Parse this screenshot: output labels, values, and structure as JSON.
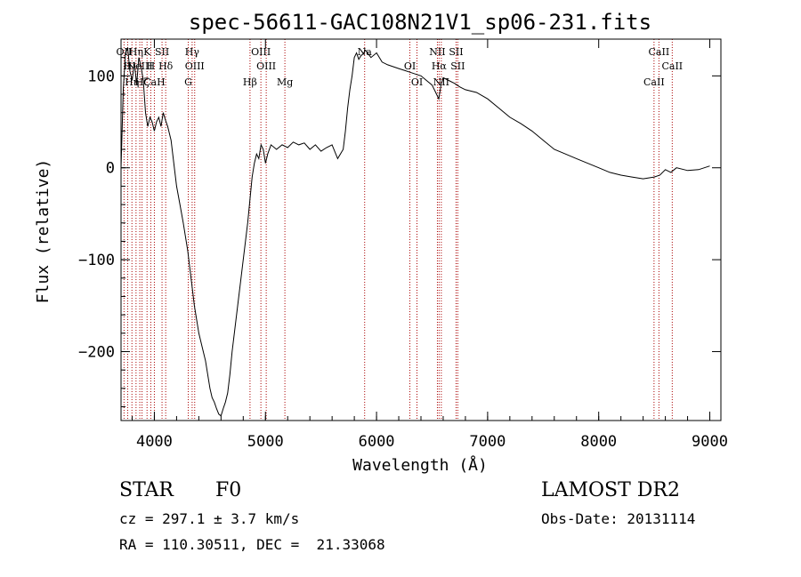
{
  "chart_data": {
    "type": "line",
    "title": "spec-56611-GAC108N21V1_sp06-231.fits",
    "xlabel": "Wavelength (Å)",
    "ylabel": "Flux (relative)",
    "xlim": [
      3700,
      9100
    ],
    "ylim": [
      -275,
      140
    ],
    "xticks": [
      4000,
      5000,
      6000,
      7000,
      8000,
      9000
    ],
    "yticks": [
      100,
      0,
      -100,
      -200
    ],
    "ytick_labels": [
      "100",
      "0",
      "−100",
      "−200"
    ],
    "grid": false,
    "series": [
      {
        "x": [
          3700,
          3720,
          3740,
          3760,
          3780,
          3800,
          3820,
          3840,
          3860,
          3880,
          3900,
          3920,
          3940,
          3960,
          3980,
          4000,
          4020,
          4040,
          4060,
          4080,
          4100,
          4120,
          4150,
          4180,
          4200,
          4230,
          4260,
          4300,
          4320,
          4340,
          4360,
          4380,
          4400,
          4420,
          4440,
          4460,
          4480,
          4500,
          4520,
          4540,
          4560,
          4580,
          4600,
          4620,
          4640,
          4660,
          4680,
          4700,
          4720,
          4740,
          4760,
          4780,
          4800,
          4820,
          4840,
          4860,
          4880,
          4900,
          4920,
          4940,
          4960,
          4980,
          5000,
          5020,
          5050,
          5100,
          5150,
          5200,
          5250,
          5300,
          5350,
          5400,
          5450,
          5500,
          5550,
          5600,
          5650,
          5700,
          5720,
          5740,
          5760,
          5780,
          5800,
          5820,
          5840,
          5860,
          5880,
          5900,
          5950,
          6000,
          6050,
          6100,
          6150,
          6200,
          6250,
          6300,
          6350,
          6400,
          6450,
          6500,
          6540,
          6560,
          6580,
          6600,
          6650,
          6700,
          6750,
          6800,
          6900,
          7000,
          7100,
          7200,
          7300,
          7400,
          7500,
          7600,
          7700,
          7800,
          7900,
          8000,
          8100,
          8200,
          8300,
          8400,
          8500,
          8550,
          8600,
          8650,
          8700,
          8800,
          8900,
          9000
        ],
        "y": [
          0,
          85,
          125,
          130,
          105,
          95,
          115,
          90,
          120,
          110,
          95,
          60,
          45,
          55,
          50,
          40,
          50,
          55,
          45,
          60,
          52,
          45,
          30,
          0,
          -20,
          -40,
          -60,
          -90,
          -110,
          -130,
          -150,
          -165,
          -180,
          -190,
          -200,
          -210,
          -225,
          -240,
          -250,
          -255,
          -262,
          -268,
          -270,
          -262,
          -255,
          -245,
          -225,
          -200,
          -180,
          -160,
          -140,
          -120,
          -100,
          -80,
          -60,
          -35,
          -10,
          5,
          15,
          10,
          25,
          20,
          5,
          15,
          25,
          20,
          25,
          22,
          28,
          25,
          27,
          20,
          25,
          18,
          22,
          25,
          10,
          20,
          40,
          65,
          85,
          100,
          120,
          125,
          118,
          122,
          124,
          128,
          120,
          125,
          115,
          112,
          110,
          108,
          106,
          104,
          102,
          100,
          95,
          90,
          80,
          75,
          90,
          98,
          95,
          92,
          88,
          85,
          82,
          75,
          65,
          55,
          48,
          40,
          30,
          20,
          15,
          10,
          5,
          0,
          -5,
          -8,
          -10,
          -12,
          -10,
          -8,
          -2,
          -5,
          0,
          -3,
          -2,
          2
        ]
      }
    ],
    "line_markers": [
      {
        "x": 3727,
        "label": "OII"
      },
      {
        "x": 3760,
        "label": "H"
      },
      {
        "x": 3798,
        "label": "Hη"
      },
      {
        "x": 3835,
        "label": "Hη"
      },
      {
        "x": 3869,
        "label": "NeIII"
      },
      {
        "x": 3889,
        "label": "Hζ"
      },
      {
        "x": 3934,
        "label": "K"
      },
      {
        "x": 3968,
        "label": "H"
      },
      {
        "x": 4000,
        "label": "CaH"
      },
      {
        "x": 4069,
        "label": "SII"
      },
      {
        "x": 4102,
        "label": "Hδ"
      },
      {
        "x": 4305,
        "label": "G"
      },
      {
        "x": 4340,
        "label": "Hγ"
      },
      {
        "x": 4363,
        "label": "OIII"
      },
      {
        "x": 4861,
        "label": "Hβ"
      },
      {
        "x": 4959,
        "label": "OIII"
      },
      {
        "x": 5007,
        "label": "OIII"
      },
      {
        "x": 5175,
        "label": "Mg"
      },
      {
        "x": 5893,
        "label": "Na"
      },
      {
        "x": 6300,
        "label": "OI"
      },
      {
        "x": 6364,
        "label": "OI"
      },
      {
        "x": 6548,
        "label": "NII"
      },
      {
        "x": 6563,
        "label": "Hα"
      },
      {
        "x": 6583,
        "label": "NII"
      },
      {
        "x": 6716,
        "label": "SII"
      },
      {
        "x": 6731,
        "label": "SII"
      },
      {
        "x": 8498,
        "label": "CaII"
      },
      {
        "x": 8542,
        "label": "CaII"
      },
      {
        "x": 8662,
        "label": "CaII"
      }
    ],
    "marker_color": "#aa0000",
    "line_color": "#000000"
  },
  "info": {
    "object_class": "STAR",
    "subclass": "F0",
    "survey": "LAMOST DR2",
    "cz": "cz = 297.1 ± 3.7 km/s",
    "obs_date": "Obs-Date: 20131114",
    "coords": "RA = 110.30511, DEC =  21.33068"
  }
}
